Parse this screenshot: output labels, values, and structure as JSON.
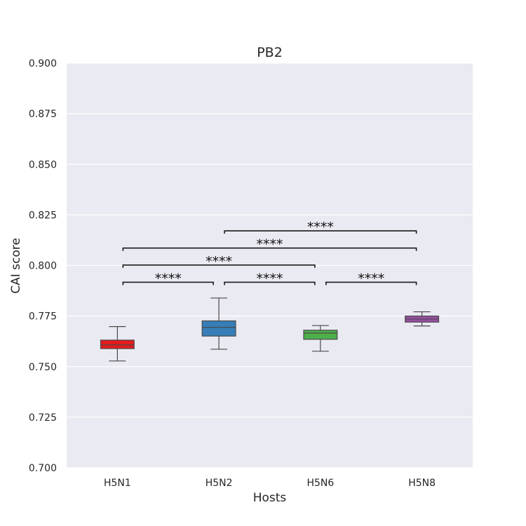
{
  "chart_data": {
    "type": "box",
    "title": "PB2",
    "xlabel": "Hosts",
    "ylabel": "CAI score",
    "ylim": [
      0.7,
      0.9
    ],
    "yticks": [
      "0.700",
      "0.725",
      "0.750",
      "0.775",
      "0.800",
      "0.825",
      "0.850",
      "0.875",
      "0.900"
    ],
    "grid": true,
    "categories": [
      "H5N1",
      "H5N2",
      "H5N6",
      "H5N8"
    ],
    "boxes": [
      {
        "category": "H5N1",
        "whisker_low": 0.7528,
        "q1": 0.7589,
        "median": 0.7607,
        "q3": 0.7631,
        "whisker_high": 0.7698,
        "color": "#e41a1c"
      },
      {
        "category": "H5N2",
        "whisker_low": 0.7586,
        "q1": 0.7651,
        "median": 0.7694,
        "q3": 0.7726,
        "whisker_high": 0.7839,
        "color": "#377eb8"
      },
      {
        "category": "H5N6",
        "whisker_low": 0.7576,
        "q1": 0.7635,
        "median": 0.7666,
        "q3": 0.768,
        "whisker_high": 0.7703,
        "color": "#4daf4a"
      },
      {
        "category": "H5N8",
        "whisker_low": 0.7701,
        "q1": 0.772,
        "median": 0.7735,
        "q3": 0.775,
        "whisker_high": 0.7771,
        "color": "#984ea3"
      }
    ],
    "significance": [
      {
        "from": "H5N1",
        "to": "H5N2",
        "y": 0.7917,
        "label": "****"
      },
      {
        "from": "H5N2",
        "to": "H5N6",
        "y": 0.7917,
        "label": "****"
      },
      {
        "from": "H5N6",
        "to": "H5N8",
        "y": 0.7917,
        "label": "****"
      },
      {
        "from": "H5N1",
        "to": "H5N6",
        "y": 0.8002,
        "label": "****"
      },
      {
        "from": "H5N1",
        "to": "H5N8",
        "y": 0.8086,
        "label": "****"
      },
      {
        "from": "H5N2",
        "to": "H5N8",
        "y": 0.8171,
        "label": "****"
      }
    ],
    "background_color": "#eaeaf2",
    "grid_color": "#ffffff"
  }
}
